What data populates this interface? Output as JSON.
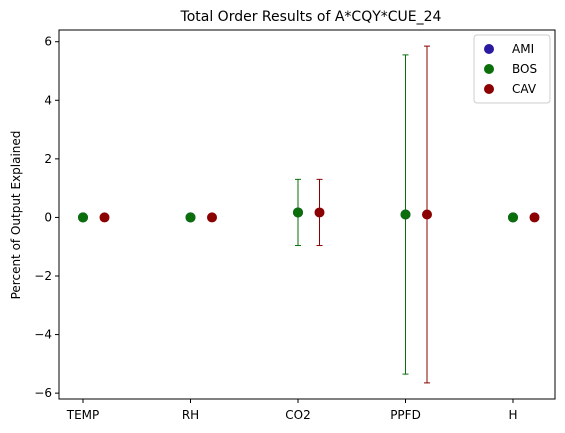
{
  "colors": {
    "AMI": "#2a1aa0",
    "BOS": "#0a6e0a",
    "CAV": "#8b0000"
  },
  "chart_data": {
    "type": "scatter",
    "title": "Total Order Results of A*CQY*CUE_24",
    "xlabel": "",
    "ylabel": "Percent of Output Explained",
    "categories": [
      "TEMP",
      "RH",
      "CO2",
      "PPFD",
      "H"
    ],
    "ylim": [
      -6.2,
      6.4
    ],
    "yticks": [
      -6,
      -4,
      -2,
      0,
      2,
      4,
      6
    ],
    "ytick_labels": [
      "−6",
      "−4",
      "−2",
      "0",
      "2",
      "4",
      "6"
    ],
    "grid": false,
    "legend_position": "top-right",
    "series": [
      {
        "name": "AMI",
        "values": [
          0,
          0,
          0.17,
          0.1,
          0
        ],
        "errors": [
          0,
          0,
          0,
          0,
          0
        ]
      },
      {
        "name": "BOS",
        "values": [
          0,
          0,
          0.17,
          0.1,
          0
        ],
        "errors": [
          0,
          0,
          1.13,
          5.45,
          0
        ]
      },
      {
        "name": "CAV",
        "values": [
          0,
          0,
          0.17,
          0.1,
          0
        ],
        "errors": [
          0,
          0,
          1.13,
          5.75,
          0
        ]
      }
    ]
  }
}
